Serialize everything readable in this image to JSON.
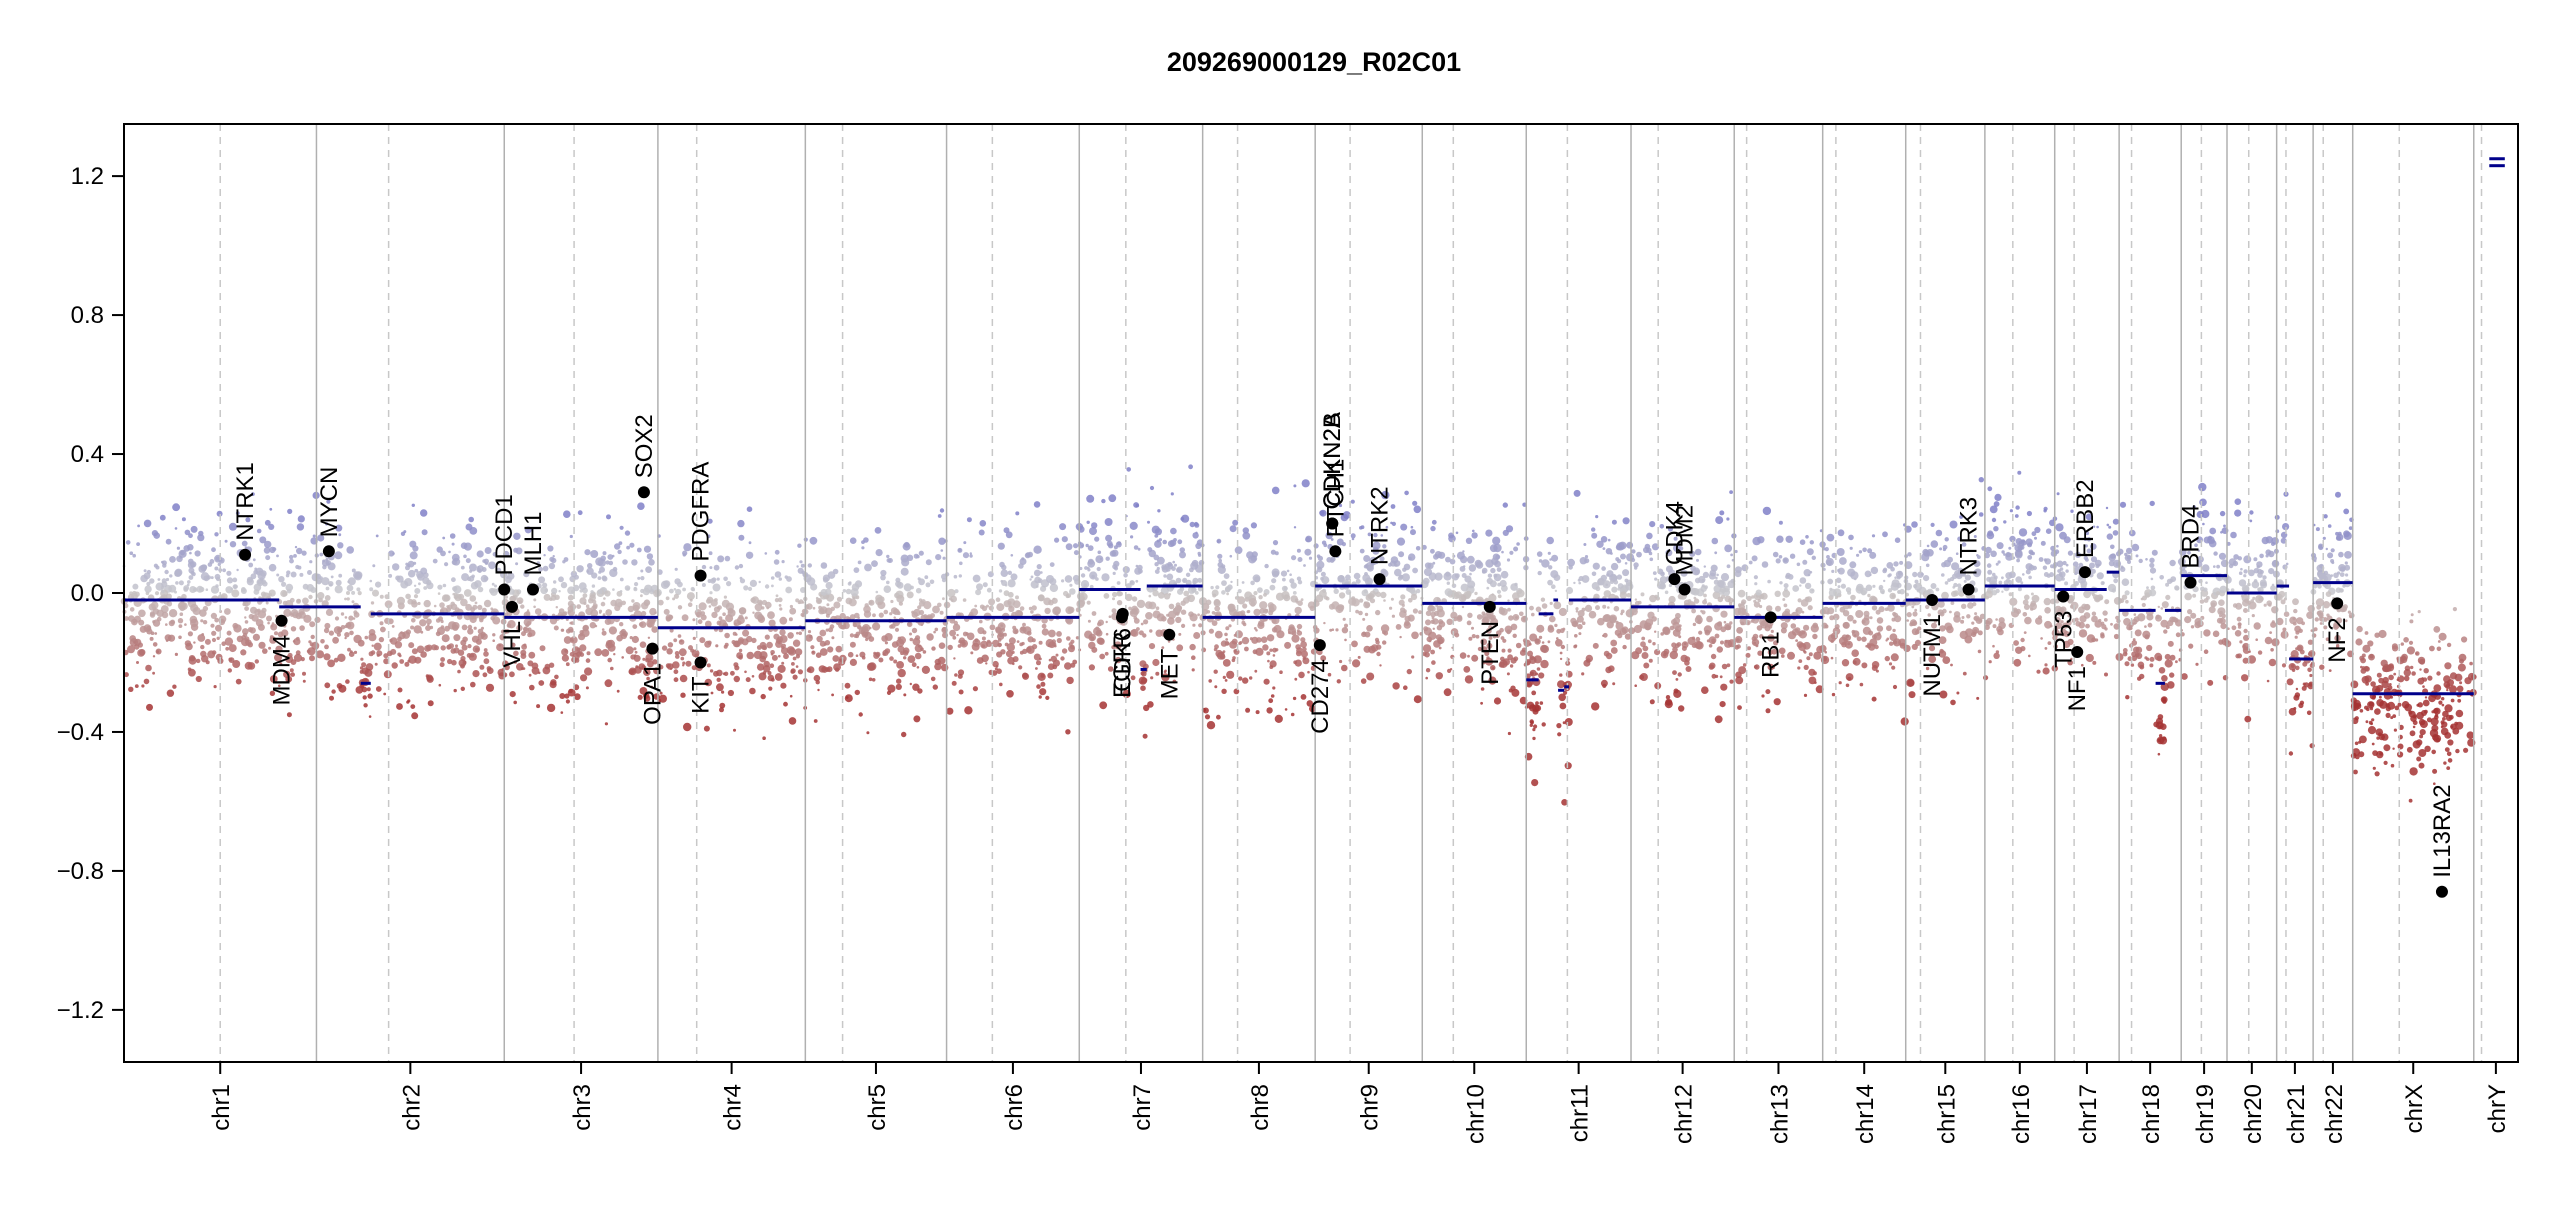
{
  "chart_data": {
    "type": "scatter",
    "title": "209269000129_R02C01",
    "xlabel": "",
    "ylabel": "",
    "ylim": [
      -1.35,
      1.35
    ],
    "yticks": [
      -1.2,
      -0.8,
      -0.4,
      0.0,
      0.4,
      0.8,
      1.2
    ],
    "ytick_labels": [
      "−1.2",
      "−0.8",
      "−0.4",
      "0.0",
      "0.4",
      "0.8",
      "1.2"
    ],
    "chromosomes": [
      {
        "name": "chr1",
        "start": 0,
        "end": 248
      },
      {
        "name": "chr2",
        "start": 248,
        "end": 490
      },
      {
        "name": "chr3",
        "start": 490,
        "end": 688
      },
      {
        "name": "chr4",
        "start": 688,
        "end": 878
      },
      {
        "name": "chr5",
        "start": 878,
        "end": 1060
      },
      {
        "name": "chr6",
        "start": 1060,
        "end": 1231
      },
      {
        "name": "chr7",
        "start": 1231,
        "end": 1390
      },
      {
        "name": "chr8",
        "start": 1390,
        "end": 1535
      },
      {
        "name": "chr9",
        "start": 1535,
        "end": 1673
      },
      {
        "name": "chr10",
        "start": 1673,
        "end": 1807
      },
      {
        "name": "chr11",
        "start": 1807,
        "end": 1942
      },
      {
        "name": "chr12",
        "start": 1942,
        "end": 2075
      },
      {
        "name": "chr13",
        "start": 2075,
        "end": 2189
      },
      {
        "name": "chr14",
        "start": 2189,
        "end": 2296
      },
      {
        "name": "chr15",
        "start": 2296,
        "end": 2398
      },
      {
        "name": "chr16",
        "start": 2398,
        "end": 2488
      },
      {
        "name": "chr17",
        "start": 2488,
        "end": 2571
      },
      {
        "name": "chr18",
        "start": 2571,
        "end": 2651
      },
      {
        "name": "chr19",
        "start": 2651,
        "end": 2710
      },
      {
        "name": "chr20",
        "start": 2710,
        "end": 2774
      },
      {
        "name": "chr21",
        "start": 2774,
        "end": 2821
      },
      {
        "name": "chr22",
        "start": 2821,
        "end": 2872
      },
      {
        "name": "chrX",
        "start": 2872,
        "end": 3028
      },
      {
        "name": "chrY",
        "start": 3028,
        "end": 3085
      }
    ],
    "centromeres": [
      124,
      341,
      580,
      738,
      926,
      1119,
      1291,
      1435,
      1580,
      1713,
      1860,
      1977,
      2091,
      2206,
      2315,
      2434,
      2513,
      2587,
      2677,
      2738,
      2786,
      2834,
      2932,
      3038
    ],
    "segments": [
      {
        "start": 0,
        "end": 185,
        "value": -0.02
      },
      {
        "start": 185,
        "end": 200,
        "value": -0.02
      },
      {
        "start": 200,
        "end": 230,
        "value": -0.04
      },
      {
        "start": 230,
        "end": 248,
        "value": -0.04
      },
      {
        "start": 248,
        "end": 305,
        "value": -0.04
      },
      {
        "start": 305,
        "end": 318,
        "value": -0.26
      },
      {
        "start": 318,
        "end": 490,
        "value": -0.06
      },
      {
        "start": 490,
        "end": 688,
        "value": -0.07
      },
      {
        "start": 688,
        "end": 878,
        "value": -0.1
      },
      {
        "start": 878,
        "end": 1060,
        "value": -0.08
      },
      {
        "start": 1060,
        "end": 1231,
        "value": -0.07
      },
      {
        "start": 1231,
        "end": 1310,
        "value": 0.01
      },
      {
        "start": 1310,
        "end": 1318,
        "value": -0.22
      },
      {
        "start": 1318,
        "end": 1390,
        "value": 0.02
      },
      {
        "start": 1390,
        "end": 1535,
        "value": -0.07
      },
      {
        "start": 1535,
        "end": 1673,
        "value": 0.02
      },
      {
        "start": 1673,
        "end": 1807,
        "value": -0.03
      },
      {
        "start": 1807,
        "end": 1823,
        "value": -0.25
      },
      {
        "start": 1823,
        "end": 1842,
        "value": -0.06
      },
      {
        "start": 1842,
        "end": 1848,
        "value": -0.02
      },
      {
        "start": 1848,
        "end": 1856,
        "value": -0.28
      },
      {
        "start": 1856,
        "end": 1862,
        "value": -0.27
      },
      {
        "start": 1862,
        "end": 1942,
        "value": -0.02
      },
      {
        "start": 1942,
        "end": 2075,
        "value": -0.04
      },
      {
        "start": 2075,
        "end": 2189,
        "value": -0.07
      },
      {
        "start": 2189,
        "end": 2296,
        "value": -0.03
      },
      {
        "start": 2296,
        "end": 2398,
        "value": -0.02
      },
      {
        "start": 2398,
        "end": 2488,
        "value": 0.02
      },
      {
        "start": 2488,
        "end": 2555,
        "value": 0.01
      },
      {
        "start": 2555,
        "end": 2571,
        "value": 0.06
      },
      {
        "start": 2571,
        "end": 2618,
        "value": -0.05
      },
      {
        "start": 2618,
        "end": 2630,
        "value": -0.26
      },
      {
        "start": 2630,
        "end": 2651,
        "value": -0.05
      },
      {
        "start": 2651,
        "end": 2710,
        "value": 0.05
      },
      {
        "start": 2710,
        "end": 2774,
        "value": 0.0
      },
      {
        "start": 2774,
        "end": 2790,
        "value": 0.02
      },
      {
        "start": 2790,
        "end": 2821,
        "value": -0.19
      },
      {
        "start": 2821,
        "end": 2872,
        "value": 0.03
      },
      {
        "start": 2872,
        "end": 3028,
        "value": -0.29
      },
      {
        "start": 3048,
        "end": 3068,
        "value": 1.23
      },
      {
        "start": 3048,
        "end": 3068,
        "value": 1.25
      }
    ],
    "genes": [
      {
        "name": "NTRK1",
        "pos": 156,
        "value": 0.11,
        "label_side": "above"
      },
      {
        "name": "MDM4",
        "pos": 203,
        "value": -0.08,
        "label_side": "below"
      },
      {
        "name": "MYCN",
        "pos": 264,
        "value": 0.12,
        "label_side": "above"
      },
      {
        "name": "PDCD1",
        "pos": 490,
        "value": 0.01,
        "label_side": "above"
      },
      {
        "name": "VHL",
        "pos": 500,
        "value": -0.04,
        "label_side": "below"
      },
      {
        "name": "MLH1",
        "pos": 527,
        "value": 0.01,
        "label_side": "above"
      },
      {
        "name": "SOX2",
        "pos": 670,
        "value": 0.29,
        "label_side": "above"
      },
      {
        "name": "OPA1",
        "pos": 681,
        "value": -0.16,
        "label_side": "below"
      },
      {
        "name": "PDGFRA",
        "pos": 743,
        "value": 0.05,
        "label_side": "above"
      },
      {
        "name": "KIT",
        "pos": 743,
        "value": -0.2,
        "label_side": "below"
      },
      {
        "name": "EGFR",
        "pos": 1286,
        "value": -0.07,
        "label_side": "below"
      },
      {
        "name": "CDK6",
        "pos": 1287,
        "value": -0.06,
        "label_side": "below"
      },
      {
        "name": "MET",
        "pos": 1347,
        "value": -0.12,
        "label_side": "below"
      },
      {
        "name": "CD274",
        "pos": 1541,
        "value": -0.15,
        "label_side": "below"
      },
      {
        "name": "CDKN2A",
        "pos": 1557,
        "value": 0.2,
        "label_side": "above"
      },
      {
        "name": "CDKN2B",
        "pos": 1557,
        "value": 0.2,
        "label_side": "above"
      },
      {
        "name": "PTCH1",
        "pos": 1561,
        "value": 0.12,
        "label_side": "above"
      },
      {
        "name": "NTRK2",
        "pos": 1618,
        "value": 0.04,
        "label_side": "above"
      },
      {
        "name": "PTEN",
        "pos": 1760,
        "value": -0.04,
        "label_side": "below"
      },
      {
        "name": "CDK4",
        "pos": 1998,
        "value": 0.04,
        "label_side": "above"
      },
      {
        "name": "MDM2",
        "pos": 2011,
        "value": 0.01,
        "label_side": "above"
      },
      {
        "name": "RB1",
        "pos": 2122,
        "value": -0.07,
        "label_side": "below"
      },
      {
        "name": "NUTM1",
        "pos": 2330,
        "value": -0.02,
        "label_side": "below"
      },
      {
        "name": "NTRK3",
        "pos": 2377,
        "value": 0.01,
        "label_side": "above"
      },
      {
        "name": "TP53",
        "pos": 2499,
        "value": -0.01,
        "label_side": "below"
      },
      {
        "name": "NF1",
        "pos": 2517,
        "value": -0.17,
        "label_side": "below"
      },
      {
        "name": "ERBB2",
        "pos": 2527,
        "value": 0.06,
        "label_side": "above"
      },
      {
        "name": "BRD4",
        "pos": 2663,
        "value": 0.03,
        "label_side": "above"
      },
      {
        "name": "NF2",
        "pos": 2852,
        "value": -0.03,
        "label_side": "below"
      },
      {
        "name": "IL13RA2",
        "pos": 2987,
        "value": -0.86,
        "label_side": "above"
      }
    ],
    "grid": false,
    "colors": {
      "segment": "#00008b",
      "gain": "#8888cc",
      "neutral": "#c8c8c8",
      "loss": "#a52a2a",
      "boundary": "#b0b0b0",
      "centromere": "#c8c8c8",
      "gene_point": "#000000"
    }
  }
}
